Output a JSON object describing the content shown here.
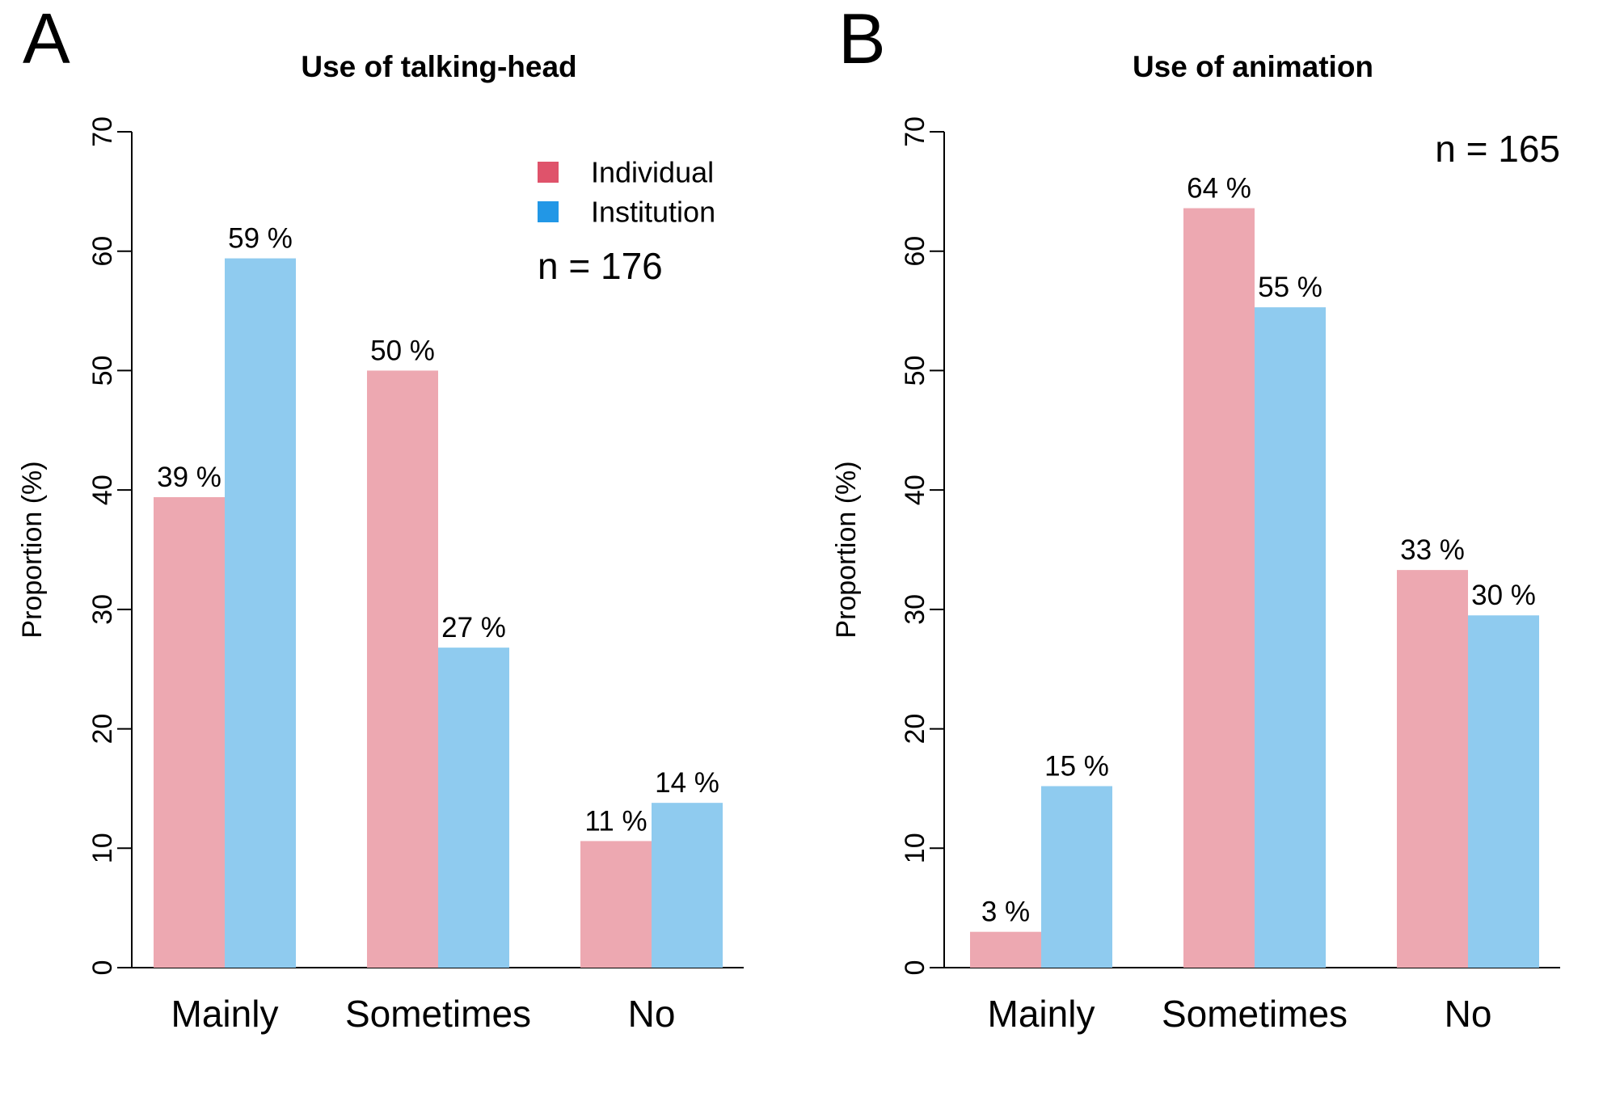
{
  "colors": {
    "individual_bar": "#EDA8B1",
    "institution_bar": "#8FCBEF",
    "individual_legend": "#DF536B",
    "institution_legend": "#2297E6",
    "axis": "#000000"
  },
  "legend": {
    "items": [
      "Individual",
      "Institution"
    ],
    "placement": "top-right"
  },
  "chart_data": [
    {
      "type": "bar",
      "panel_letter": "A",
      "title": "Use of talking-head",
      "ylabel": "Proportion (%)",
      "xlabel": "",
      "ylim": [
        0,
        70
      ],
      "yticks": [
        0,
        10,
        20,
        30,
        40,
        50,
        60,
        70
      ],
      "categories": [
        "Mainly",
        "Sometimes",
        "No"
      ],
      "series": [
        {
          "name": "Individual",
          "values": [
            39.4,
            50.0,
            10.6
          ],
          "labels": [
            "39 %",
            "50 %",
            "11 %"
          ]
        },
        {
          "name": "Institution",
          "values": [
            59.4,
            26.8,
            13.8
          ],
          "labels": [
            "59 %",
            "27 %",
            "14 %"
          ]
        }
      ],
      "annotation": "n = 176",
      "legend": true
    },
    {
      "type": "bar",
      "panel_letter": "B",
      "title": "Use of animation",
      "ylabel": "Proportion (%)",
      "xlabel": "",
      "ylim": [
        0,
        70
      ],
      "yticks": [
        0,
        10,
        20,
        30,
        40,
        50,
        60,
        70
      ],
      "categories": [
        "Mainly",
        "Sometimes",
        "No"
      ],
      "series": [
        {
          "name": "Individual",
          "values": [
            3.0,
            63.6,
            33.3
          ],
          "labels": [
            "3 %",
            "64 %",
            "33 %"
          ]
        },
        {
          "name": "Institution",
          "values": [
            15.2,
            55.3,
            29.5
          ],
          "labels": [
            "15 %",
            "55 %",
            "30 %"
          ]
        }
      ],
      "annotation": "n = 165",
      "legend": false
    }
  ]
}
